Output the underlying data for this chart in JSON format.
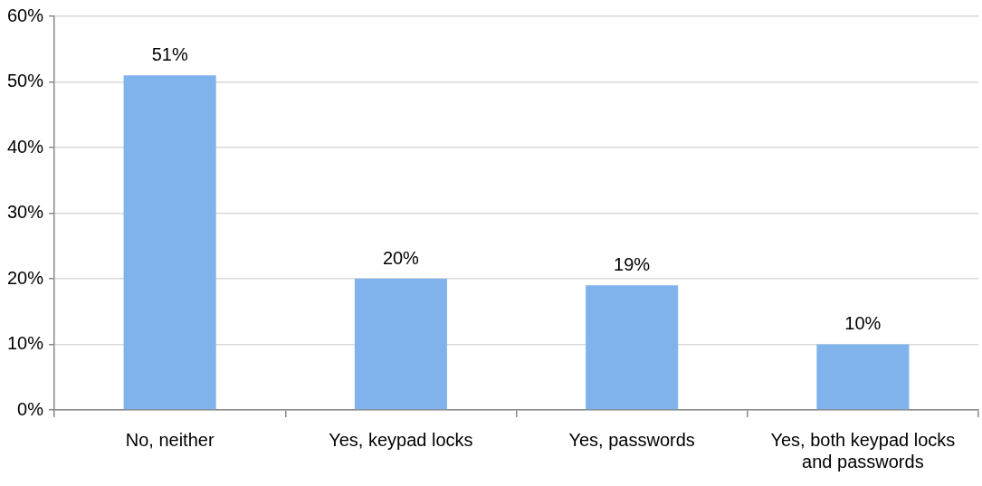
{
  "chart_data": {
    "type": "bar",
    "categories": [
      "No, neither",
      "Yes, keypad locks",
      "Yes, passwords",
      "Yes, both keypad locks and passwords"
    ],
    "values": [
      51,
      20,
      19,
      10
    ],
    "value_labels": [
      "51%",
      "20%",
      "19%",
      "10%"
    ],
    "color": "#80b3ec",
    "ylim": [
      0,
      60
    ],
    "yticks": [
      {
        "value": 0,
        "label": "0%"
      },
      {
        "value": 10,
        "label": "10%"
      },
      {
        "value": 20,
        "label": "20%"
      },
      {
        "value": 30,
        "label": "30%"
      },
      {
        "value": 40,
        "label": "40%"
      },
      {
        "value": 50,
        "label": "50%"
      },
      {
        "value": 60,
        "label": "60%"
      }
    ],
    "grid": "y",
    "legend": false
  }
}
